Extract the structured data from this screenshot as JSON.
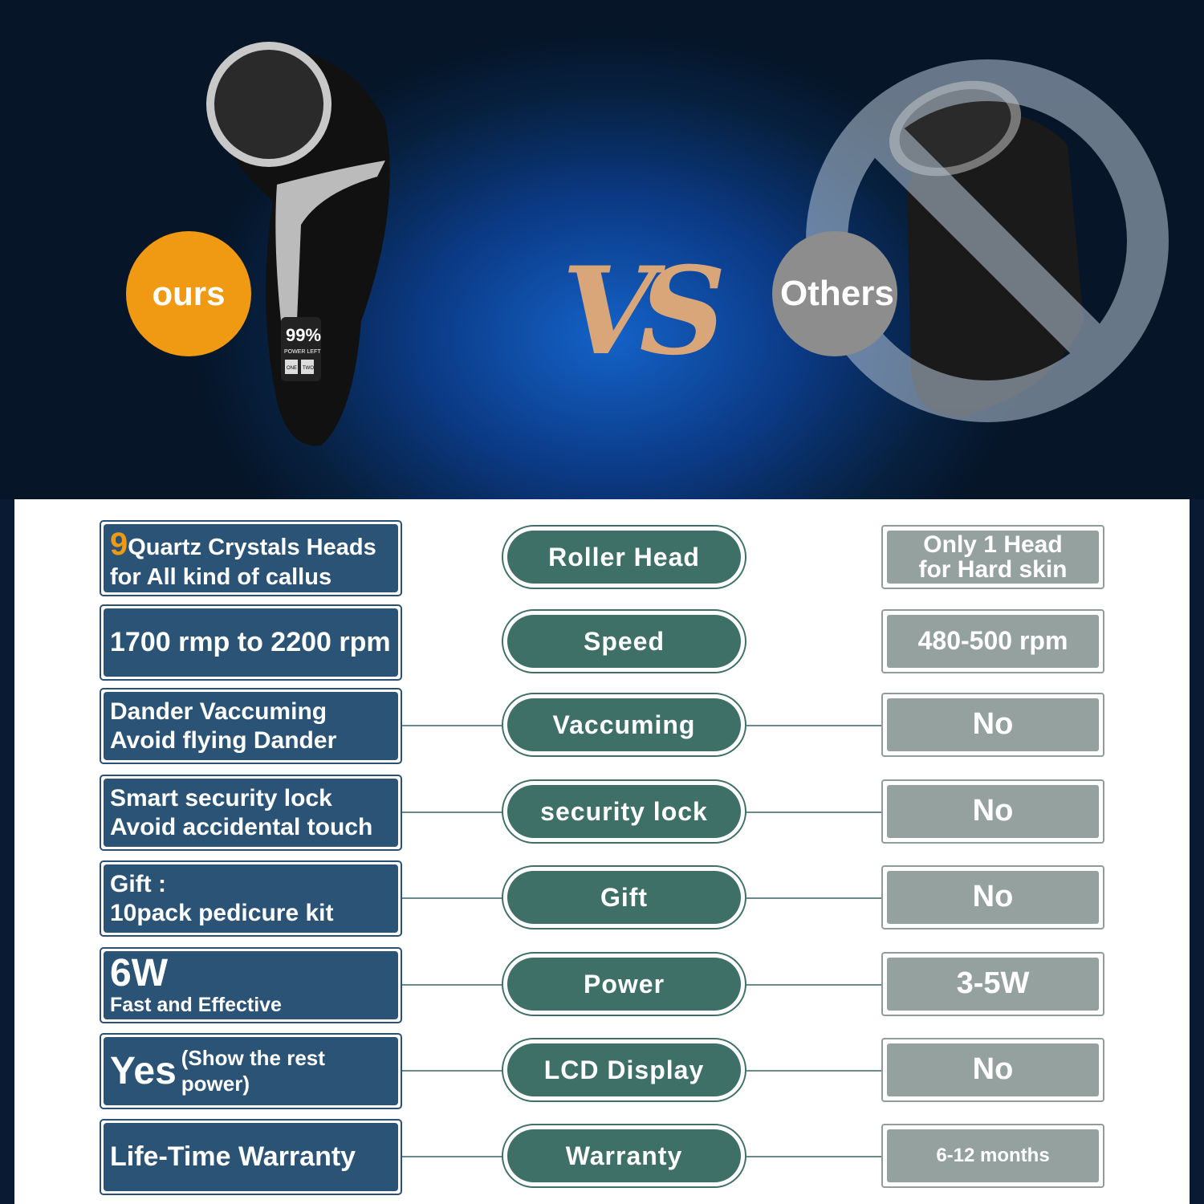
{
  "hero": {
    "ours_label": "ours",
    "others_label": "Others",
    "vs_label": "VS",
    "lcd": {
      "percent": "99%",
      "caption": "POWER LEFT",
      "btn1": "ONE",
      "btn2": "TWO"
    }
  },
  "colors": {
    "ours": "#ef9a12",
    "others": "#8d8d8d",
    "left_box": "#2b5376",
    "center_pill": "#3f7068",
    "right_box": "#95a19f",
    "highlight": "#ef9a12"
  },
  "rows": [
    {
      "ours_num": "9",
      "ours_line1": "Quartz Crystals Heads",
      "ours_line2": "for All kind of callus",
      "feature": "Roller Head",
      "others": "Only 1 Head\nfor Hard skin"
    },
    {
      "ours_line1": "1700 rmp to 2200 rpm",
      "feature": "Speed",
      "others": "480-500 rpm"
    },
    {
      "ours_line1": "Dander Vaccuming",
      "ours_line2": "Avoid flying Dander",
      "feature": "Vaccuming",
      "others": "No"
    },
    {
      "ours_line1": "Smart security lock",
      "ours_line2": "Avoid accidental touch",
      "feature": "security lock",
      "others": "No"
    },
    {
      "ours_line1": "Gift :",
      "ours_line2": "10pack pedicure kit",
      "feature": "Gift",
      "others": "No"
    },
    {
      "ours_line1": "6W",
      "ours_line2": "Fast and Effective",
      "feature": "Power",
      "others": "3-5W"
    },
    {
      "ours_line1": "Yes",
      "ours_line2": "(Show the rest power)",
      "feature": "LCD Display",
      "others": "No"
    },
    {
      "ours_line1": "Life-Time Warranty",
      "feature": "Warranty",
      "others": "6-12 months"
    }
  ]
}
